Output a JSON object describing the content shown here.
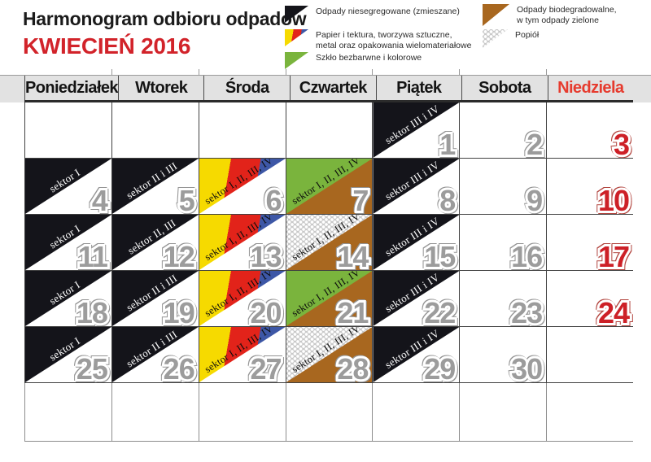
{
  "title": {
    "heading": "Harmonogram odbioru odpadów",
    "month": "KWIECIEŃ 2016"
  },
  "legend": {
    "items": [
      {
        "id": "mixed",
        "lines": [
          "Odpady niesegregowane (zmieszane)"
        ]
      },
      {
        "id": "paper",
        "lines": [
          "Papier i tektura, tworzywa sztuczne,",
          "metal oraz opakowania wielomateriałowe"
        ]
      },
      {
        "id": "glass",
        "lines": [
          "Szkło bezbarwne i kolorowe"
        ]
      },
      {
        "id": "bio",
        "lines": [
          "Odpady biodegradowalne,",
          "w tym odpady zielone"
        ]
      },
      {
        "id": "ash",
        "lines": [
          "Popiół"
        ]
      }
    ]
  },
  "weekdays": [
    "Poniedziałek",
    "Wtorek",
    "Środa",
    "Czwartek",
    "Piątek",
    "Sobota",
    "Niedziela"
  ],
  "weeks": [
    [
      null,
      null,
      null,
      null,
      {
        "day": "1",
        "banner": "black",
        "label": "sektor III i IV"
      },
      {
        "day": "2"
      },
      {
        "day": "3",
        "sunday": true
      }
    ],
    [
      {
        "day": "4",
        "banner": "black",
        "label": "sektor I"
      },
      {
        "day": "5",
        "banner": "black",
        "label": "sektor II i III"
      },
      {
        "day": "6",
        "banner": "tricolor",
        "label": "sektor I, II, III, IV"
      },
      {
        "day": "7",
        "fill": "green-brown",
        "label": "sektor I, II, III, IV"
      },
      {
        "day": "8",
        "banner": "black",
        "label": "sektor III i IV"
      },
      {
        "day": "9"
      },
      {
        "day": "10",
        "sunday": true
      }
    ],
    [
      {
        "day": "11",
        "banner": "black",
        "label": "sektor I"
      },
      {
        "day": "12",
        "banner": "black",
        "label": "sektor II, III"
      },
      {
        "day": "13",
        "banner": "tricolor",
        "label": "sektor I, II, III, IV"
      },
      {
        "day": "14",
        "fill": "ash-brown",
        "label": "sektor I, II, III, IV"
      },
      {
        "day": "15",
        "banner": "black",
        "label": "sektor III i IV"
      },
      {
        "day": "16"
      },
      {
        "day": "17",
        "sunday": true
      }
    ],
    [
      {
        "day": "18",
        "banner": "black",
        "label": "sektor I"
      },
      {
        "day": "19",
        "banner": "black",
        "label": "sektor II i III"
      },
      {
        "day": "20",
        "banner": "tricolor",
        "label": "sektor I, II, III, IV"
      },
      {
        "day": "21",
        "fill": "green-brown",
        "label": "sektor I, II, III, IV"
      },
      {
        "day": "22",
        "banner": "black",
        "label": "sektor III i IV"
      },
      {
        "day": "23"
      },
      {
        "day": "24",
        "sunday": true
      }
    ],
    [
      {
        "day": "25",
        "banner": "black",
        "label": "sektor I"
      },
      {
        "day": "26",
        "banner": "black",
        "label": "sektor II i III"
      },
      {
        "day": "27",
        "banner": "tricolor",
        "label": "sektor I, II, III, IV"
      },
      {
        "day": "28",
        "fill": "ash-brown",
        "label": "sektor I, II, III, IV"
      },
      {
        "day": "29",
        "banner": "black",
        "label": "sektor III i IV"
      },
      {
        "day": "30"
      },
      null
    ],
    [
      null,
      null,
      null,
      null,
      null,
      null,
      null
    ]
  ],
  "colors": {
    "mixed": "#14141a",
    "paper-yellow": "#f6da00",
    "paper-red": "#e2231a",
    "paper-blue": "#3d57a6",
    "glass-green": "#7ab43d",
    "bio-brown": "#a8671f",
    "ash-gray": "#c9c9c9",
    "sunday-red": "#cd2027",
    "header-red": "#e63b2e",
    "month-red": "#d2232a",
    "day-gray": "#9c9c9c"
  }
}
